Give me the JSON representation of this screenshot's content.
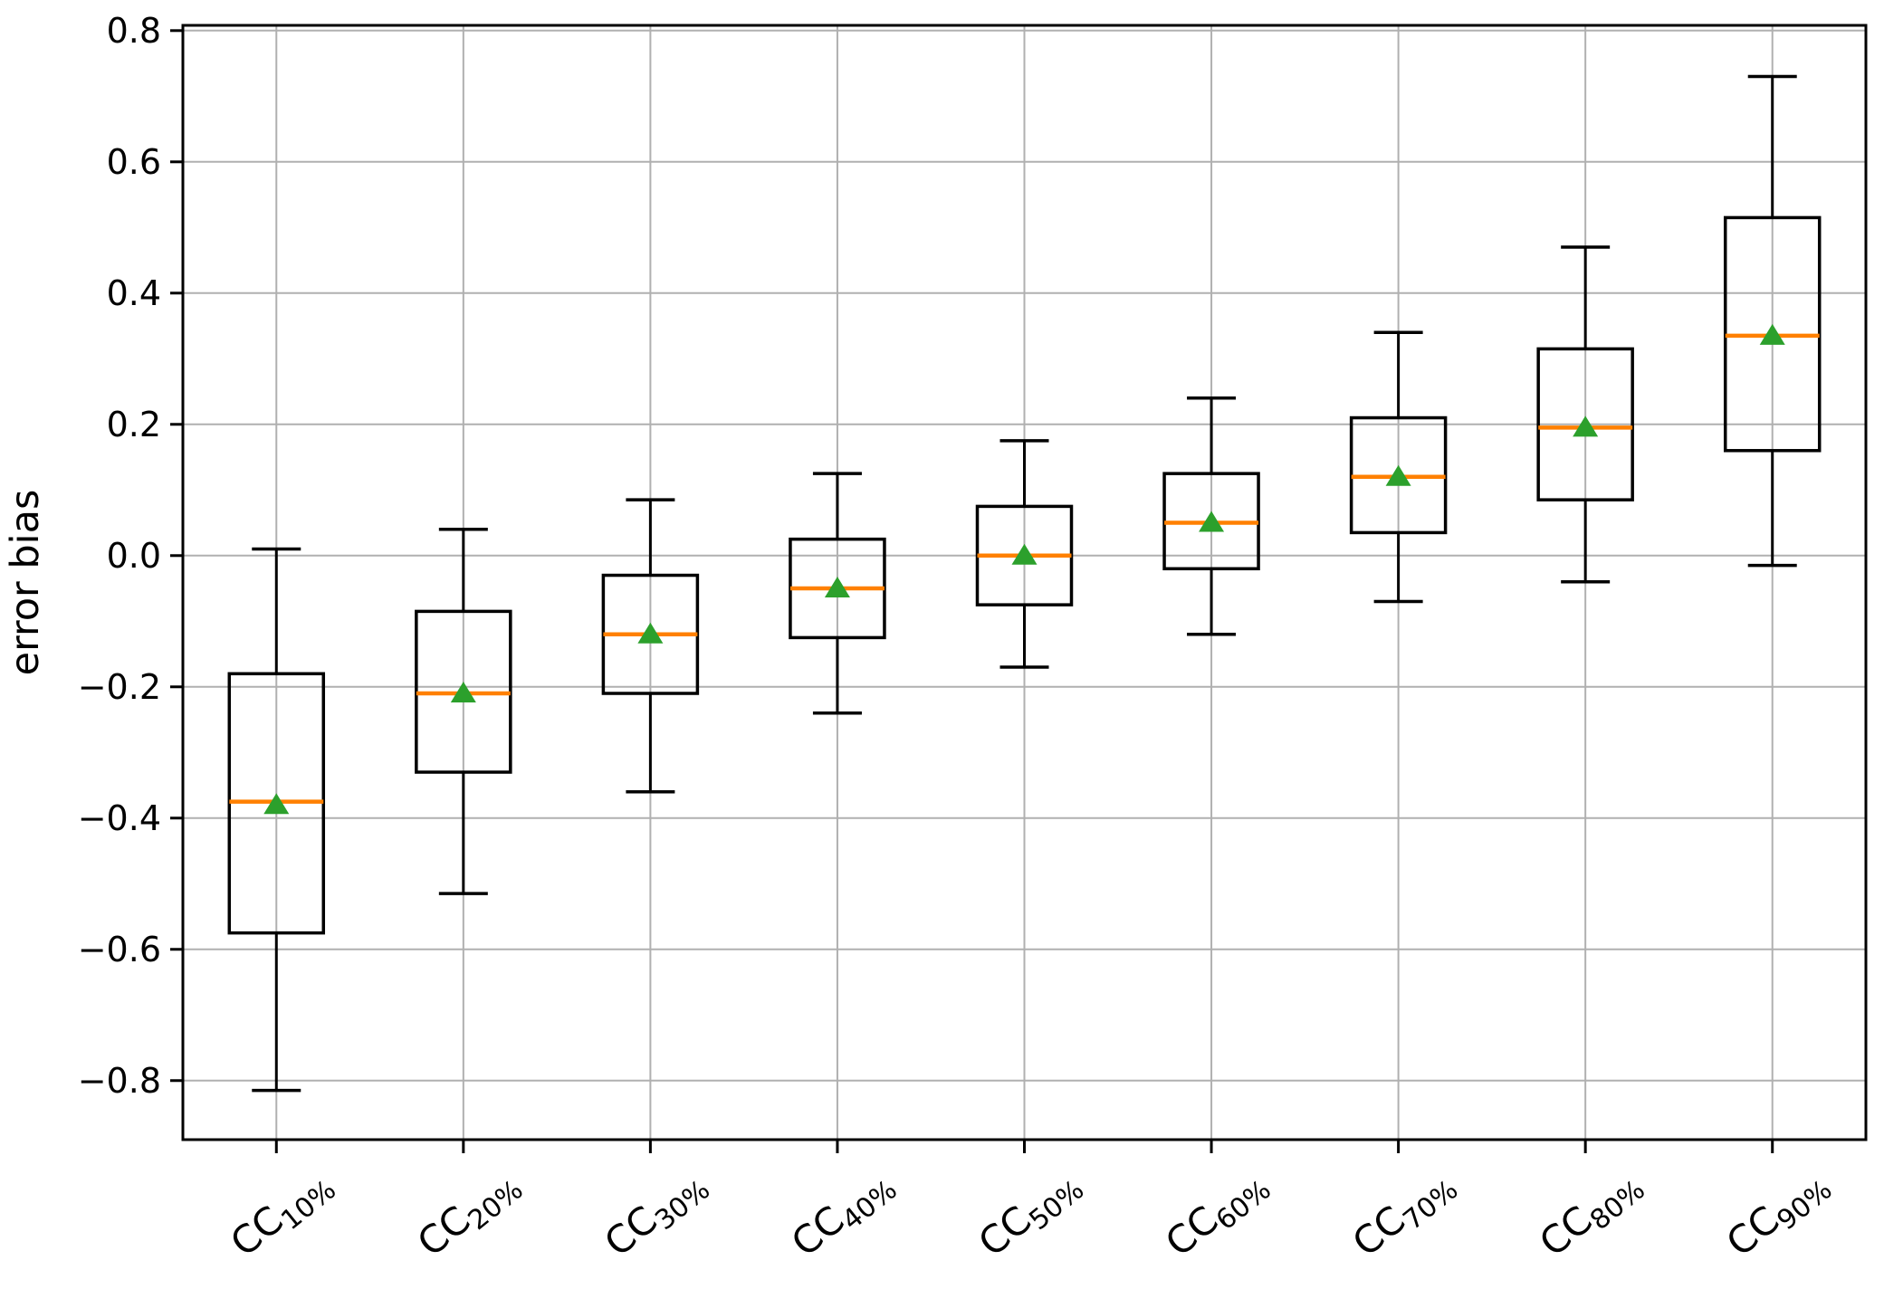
{
  "figure": {
    "ylabel": "error bias",
    "xlabel": ""
  },
  "chart_data": {
    "type": "box",
    "title": "",
    "xlabel": "",
    "ylabel": "error bias",
    "categories": [
      "CC10%",
      "CC20%",
      "CC30%",
      "CC40%",
      "CC50%",
      "CC60%",
      "CC70%",
      "CC80%",
      "CC90%"
    ],
    "category_parts": [
      {
        "base": "CC",
        "sub": "10%"
      },
      {
        "base": "CC",
        "sub": "20%"
      },
      {
        "base": "CC",
        "sub": "30%"
      },
      {
        "base": "CC",
        "sub": "40%"
      },
      {
        "base": "CC",
        "sub": "50%"
      },
      {
        "base": "CC",
        "sub": "60%"
      },
      {
        "base": "CC",
        "sub": "70%"
      },
      {
        "base": "CC",
        "sub": "80%"
      },
      {
        "base": "CC",
        "sub": "90%"
      }
    ],
    "yticks": [
      0.8,
      0.6,
      0.4,
      0.2,
      0.0,
      -0.2,
      -0.4,
      -0.6,
      -0.8
    ],
    "ylim": [
      -0.89,
      0.808
    ],
    "grid": true,
    "legend": null,
    "colors": {
      "box": "#000000",
      "whisker": "#000000",
      "median": "#ff8000",
      "mean": "#2ca02c",
      "grid": "#b0b0b0",
      "spine": "#000000",
      "background": "#ffffff"
    },
    "boxes": [
      {
        "label": "CC10%",
        "whisker_low": -0.815,
        "q1": -0.575,
        "median": -0.375,
        "mean": -0.38,
        "q3": -0.18,
        "whisker_high": 0.01
      },
      {
        "label": "CC20%",
        "whisker_low": -0.515,
        "q1": -0.33,
        "median": -0.21,
        "mean": -0.21,
        "q3": -0.085,
        "whisker_high": 0.04
      },
      {
        "label": "CC30%",
        "whisker_low": -0.36,
        "q1": -0.21,
        "median": -0.12,
        "mean": -0.12,
        "q3": -0.03,
        "whisker_high": 0.085
      },
      {
        "label": "CC40%",
        "whisker_low": -0.24,
        "q1": -0.125,
        "median": -0.05,
        "mean": -0.05,
        "q3": 0.025,
        "whisker_high": 0.125
      },
      {
        "label": "CC50%",
        "whisker_low": -0.17,
        "q1": -0.075,
        "median": 0.0,
        "mean": 0.0,
        "q3": 0.075,
        "whisker_high": 0.175
      },
      {
        "label": "CC60%",
        "whisker_low": -0.12,
        "q1": -0.02,
        "median": 0.05,
        "mean": 0.05,
        "q3": 0.125,
        "whisker_high": 0.24
      },
      {
        "label": "CC70%",
        "whisker_low": -0.07,
        "q1": 0.035,
        "median": 0.12,
        "mean": 0.12,
        "q3": 0.21,
        "whisker_high": 0.34
      },
      {
        "label": "CC80%",
        "whisker_low": -0.04,
        "q1": 0.085,
        "median": 0.195,
        "mean": 0.195,
        "q3": 0.315,
        "whisker_high": 0.47
      },
      {
        "label": "CC90%",
        "whisker_low": -0.015,
        "q1": 0.16,
        "median": 0.335,
        "mean": 0.335,
        "q3": 0.515,
        "whisker_high": 0.73
      }
    ]
  }
}
